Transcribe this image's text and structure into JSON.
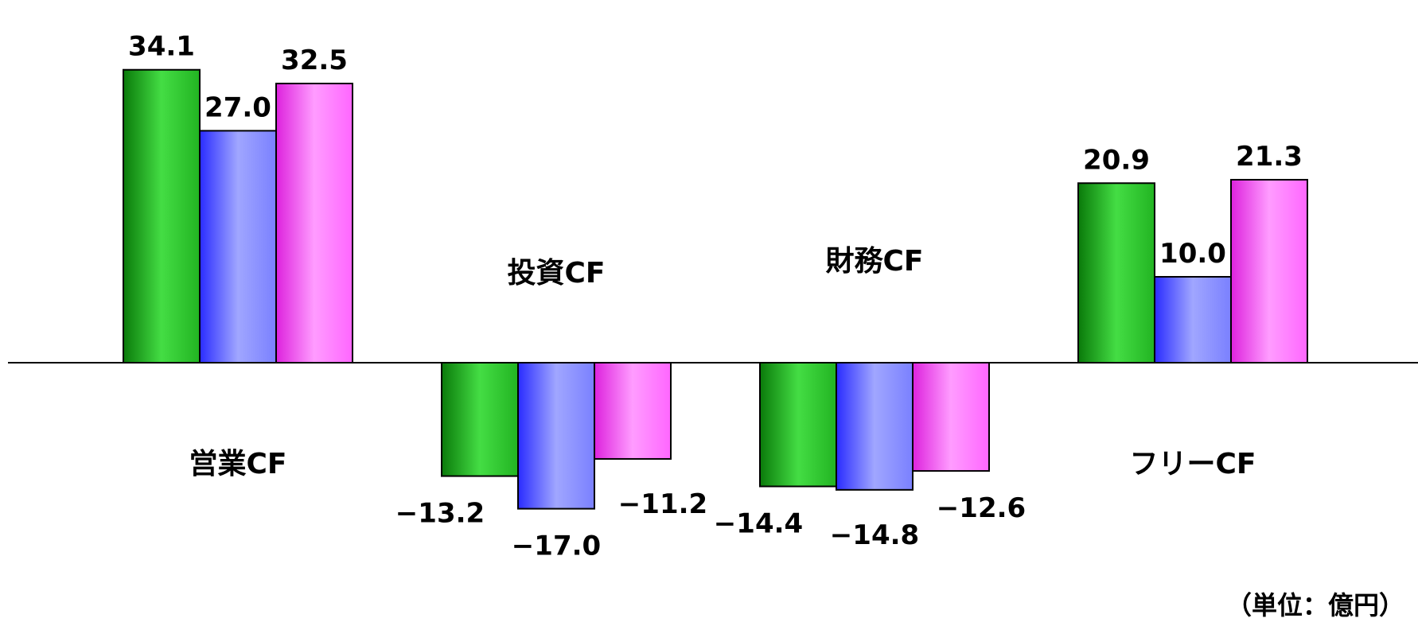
{
  "chart_data": {
    "type": "bar",
    "categories": [
      "営業CF",
      "投資CF",
      "財務CF",
      "フリーCF"
    ],
    "series": [
      {
        "values": [
          34.1,
          -13.2,
          -14.4,
          20.9
        ]
      },
      {
        "values": [
          27.0,
          -17.0,
          -14.8,
          10.0
        ]
      },
      {
        "values": [
          32.5,
          -11.2,
          -12.6,
          21.3
        ]
      }
    ],
    "value_labels": [
      [
        "34.1",
        "−13.2",
        "−14.4",
        "20.9"
      ],
      [
        "27.0",
        "−17.0",
        "−14.8",
        "10.0"
      ],
      [
        "32.5",
        "−11.2",
        "−12.6",
        "21.3"
      ]
    ],
    "unit_label": "（単位：億円）",
    "grid": false,
    "legend": "none"
  },
  "colors": {
    "series": [
      "#22b422",
      "#7a80ff",
      "#ff66ff"
    ],
    "series_dark": [
      "#0a7a0a",
      "#2a2cff",
      "#dd22dd"
    ],
    "series_light": [
      "#44dd44",
      "#a0a6ff",
      "#ff9cff"
    ],
    "axis": "#000000",
    "bar_stroke": "#000000"
  }
}
